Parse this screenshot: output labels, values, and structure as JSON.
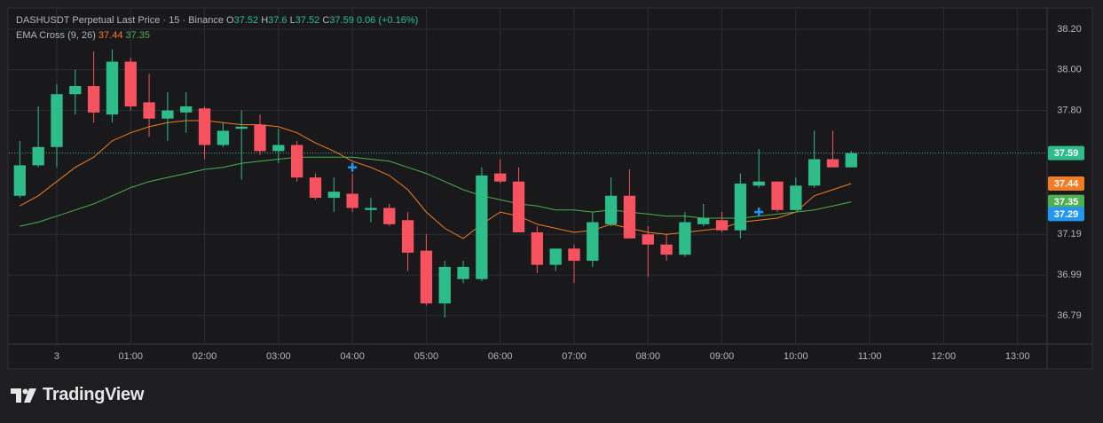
{
  "chart_data": {
    "type": "candlestick",
    "title": "DASHUSDT Perpetual Last Price · 15 · Binance",
    "ohlc_labels": [
      "O",
      "H",
      "L",
      "C"
    ],
    "change": "0.06 (+0.16%)",
    "up_color": "#2dbd8a",
    "down_color": "#f7525f",
    "x": [
      -0.5,
      -0.25,
      0,
      0.25,
      0.5,
      0.75,
      1,
      1.25,
      1.5,
      1.75,
      2,
      2.25,
      2.5,
      2.75,
      3,
      3.25,
      3.5,
      3.75,
      4,
      4.25,
      4.5,
      4.75,
      5,
      5.25,
      5.5,
      5.75,
      6,
      6.25,
      6.5,
      6.75,
      7,
      7.25,
      7.5,
      7.75,
      8,
      8.25,
      8.5,
      8.75,
      9,
      9.25,
      9.5,
      9.75,
      10,
      10.25,
      10.5,
      10.75
    ],
    "open": [
      37.38,
      37.53,
      37.62,
      37.88,
      37.92,
      37.78,
      38.04,
      37.84,
      37.76,
      37.79,
      37.81,
      37.63,
      37.71,
      37.73,
      37.6,
      37.63,
      37.47,
      37.37,
      37.39,
      37.31,
      37.32,
      37.26,
      37.11,
      36.85,
      36.97,
      36.97,
      37.49,
      37.45,
      37.2,
      37.04,
      37.12,
      37.06,
      37.24,
      37.38,
      37.19,
      37.14,
      37.09,
      37.24,
      37.26,
      37.21,
      37.43,
      37.45,
      37.31,
      37.43,
      37.56,
      37.52
    ],
    "high": [
      37.65,
      37.82,
      37.93,
      38.0,
      38.09,
      38.1,
      38.06,
      37.98,
      37.89,
      37.89,
      37.82,
      37.74,
      37.8,
      37.78,
      37.71,
      37.65,
      37.49,
      37.47,
      37.49,
      37.37,
      37.34,
      37.3,
      37.19,
      37.06,
      37.06,
      37.52,
      37.56,
      37.52,
      37.23,
      37.12,
      37.14,
      37.3,
      37.47,
      37.51,
      37.23,
      37.19,
      37.3,
      37.34,
      37.3,
      37.49,
      37.61,
      37.45,
      37.47,
      37.7,
      37.7,
      37.6
    ],
    "low": [
      37.37,
      37.52,
      37.52,
      37.78,
      37.74,
      37.74,
      37.8,
      37.67,
      37.65,
      37.69,
      37.56,
      37.62,
      37.46,
      37.58,
      37.54,
      37.45,
      37.36,
      37.3,
      37.3,
      37.25,
      37.23,
      37.01,
      36.84,
      36.78,
      36.95,
      36.96,
      37.44,
      37.2,
      37.0,
      37.01,
      36.95,
      37.03,
      37.23,
      37.17,
      36.98,
      37.06,
      37.08,
      37.23,
      37.2,
      37.17,
      37.42,
      37.3,
      37.31,
      37.42,
      37.52,
      37.52
    ],
    "close": [
      37.53,
      37.62,
      37.88,
      37.92,
      37.79,
      38.04,
      37.82,
      37.76,
      37.8,
      37.82,
      37.63,
      37.7,
      37.72,
      37.6,
      37.63,
      37.47,
      37.37,
      37.4,
      37.32,
      37.32,
      37.24,
      37.1,
      36.85,
      37.03,
      37.03,
      37.48,
      37.45,
      37.2,
      37.04,
      37.12,
      37.06,
      37.25,
      37.38,
      37.17,
      37.14,
      37.09,
      37.25,
      37.27,
      37.21,
      37.44,
      37.45,
      37.31,
      37.43,
      37.56,
      37.52,
      37.59
    ],
    "indicator": {
      "name": "EMA Cross (9, 26)",
      "series": [
        {
          "color": "#f57c20",
          "values": [
            37.33,
            37.38,
            37.45,
            37.52,
            37.57,
            37.65,
            37.69,
            37.72,
            37.74,
            37.75,
            37.75,
            37.74,
            37.73,
            37.73,
            37.72,
            37.69,
            37.64,
            37.6,
            37.55,
            37.52,
            37.48,
            37.41,
            37.3,
            37.22,
            37.17,
            37.24,
            37.3,
            37.28,
            37.24,
            37.22,
            37.2,
            37.21,
            37.24,
            37.22,
            37.2,
            37.19,
            37.2,
            37.21,
            37.22,
            37.25,
            37.26,
            37.27,
            37.3,
            37.38,
            37.41,
            37.44
          ]
        },
        {
          "color": "#4caf50",
          "values": [
            37.23,
            37.25,
            37.28,
            37.31,
            37.34,
            37.38,
            37.42,
            37.45,
            37.47,
            37.49,
            37.51,
            37.52,
            37.54,
            37.55,
            37.56,
            37.57,
            37.57,
            37.57,
            37.57,
            37.56,
            37.55,
            37.52,
            37.49,
            37.45,
            37.41,
            37.38,
            37.36,
            37.34,
            37.33,
            37.31,
            37.31,
            37.3,
            37.31,
            37.3,
            37.29,
            37.28,
            37.28,
            37.27,
            37.27,
            37.27,
            37.28,
            37.29,
            37.3,
            37.31,
            37.33,
            37.35
          ]
        }
      ]
    },
    "markers": [
      {
        "x": 4,
        "y": 37.52
      },
      {
        "x": 9.5,
        "y": 37.3
      }
    ],
    "marker_color": "#2196f3",
    "marker_level": 37.29,
    "xlim": [
      -0.648,
      13.4
    ],
    "ylim": [
      36.65,
      38.3
    ],
    "xticks": [
      {
        "value": 0,
        "label": "3"
      },
      {
        "value": 1,
        "label": "01:00"
      },
      {
        "value": 2,
        "label": "02:00"
      },
      {
        "value": 3,
        "label": "03:00"
      },
      {
        "value": 4,
        "label": "04:00"
      },
      {
        "value": 5,
        "label": "05:00"
      },
      {
        "value": 6,
        "label": "06:00"
      },
      {
        "value": 7,
        "label": "07:00"
      },
      {
        "value": 8,
        "label": "08:00"
      },
      {
        "value": 9,
        "label": "09:00"
      },
      {
        "value": 10,
        "label": "10:00"
      },
      {
        "value": 11,
        "label": "11:00"
      },
      {
        "value": 12,
        "label": "12:00"
      },
      {
        "value": 13,
        "label": "13:00"
      }
    ],
    "yticks": [
      {
        "value": 38.2,
        "label": "38.20"
      },
      {
        "value": 38,
        "label": "38.00"
      },
      {
        "value": 37.8,
        "label": "37.80"
      },
      37.19,
      36.99,
      36.79
    ],
    "grid": true
  },
  "brand": "TradingView"
}
